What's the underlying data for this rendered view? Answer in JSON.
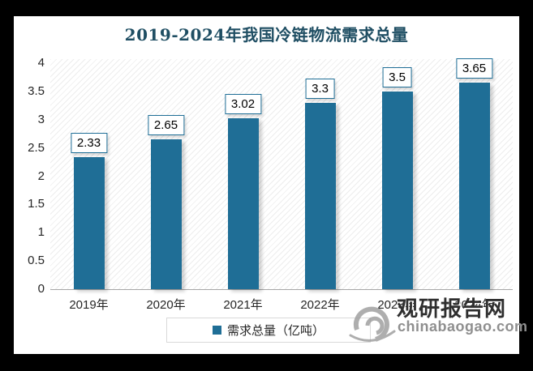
{
  "frame": {
    "border_color": "#000000",
    "background": "#ffffff"
  },
  "chart_data": {
    "type": "bar",
    "title": "2019-2024年我国冷链物流需求总量",
    "title_color": "#1F4E63",
    "categories": [
      "2019年",
      "2020年",
      "2021年",
      "2022年",
      "2023年",
      "2024年"
    ],
    "values": [
      2.33,
      2.65,
      3.02,
      3.3,
      3.5,
      3.65
    ],
    "value_labels": [
      "2.33",
      "2.65",
      "3.02",
      "3.3",
      "3.5",
      "3.65"
    ],
    "ylim": [
      0,
      4
    ],
    "yticks": [
      "0",
      "0.5",
      "1",
      "1.5",
      "2",
      "2.5",
      "3",
      "3.5",
      "4"
    ],
    "grid": false,
    "bar_color": "#1F6E96",
    "label_box_border_color": "#1F6E96",
    "legend": {
      "label": "需求总量（亿吨）",
      "position": "bottom",
      "marker_color": "#1F6E96"
    }
  },
  "watermark": {
    "brand": "观研报告网",
    "domain": "chinabaogao.com",
    "logo": "swirl-logo"
  }
}
